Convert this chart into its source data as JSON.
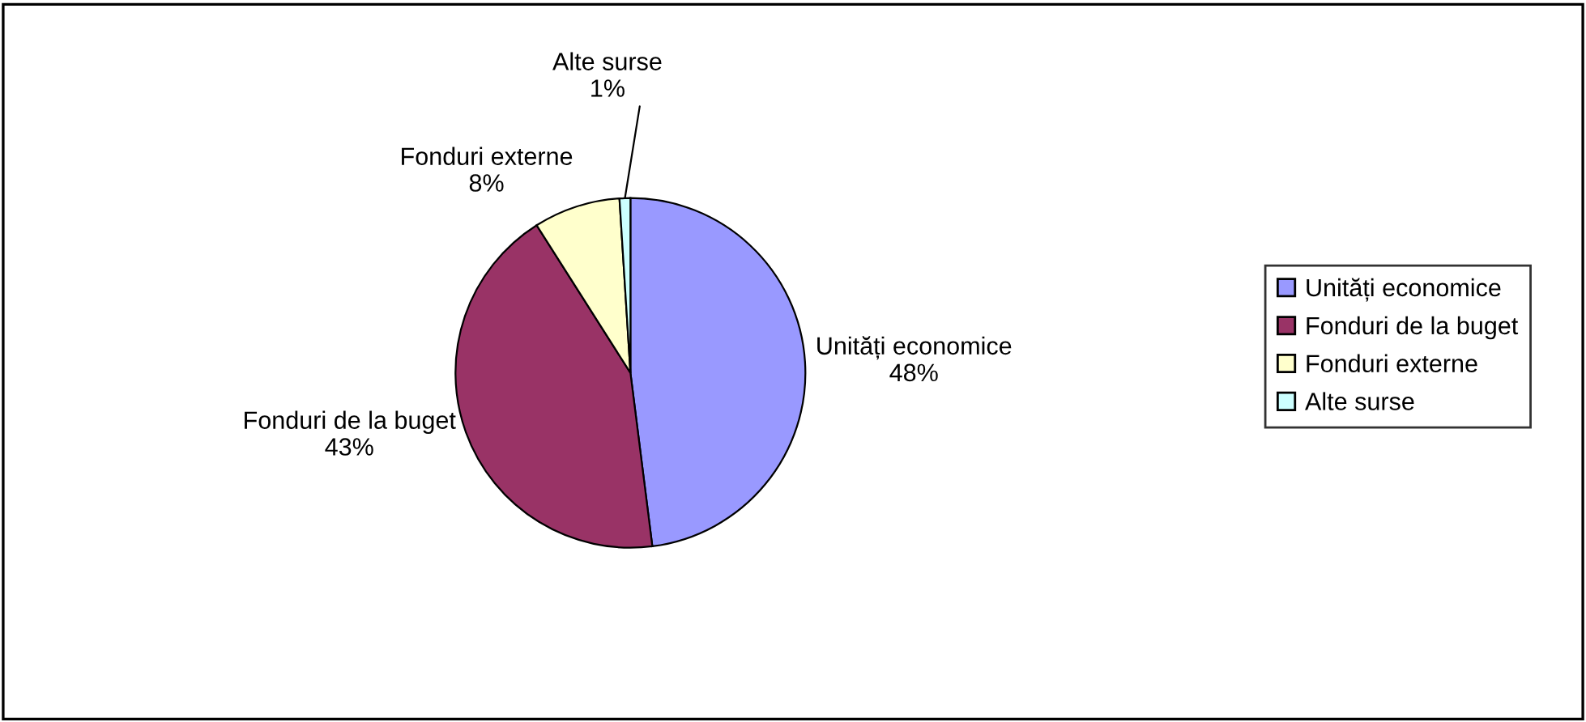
{
  "chart_data": {
    "type": "pie",
    "categories": [
      "Unități economice",
      "Fonduri de la buget",
      "Fonduri externe",
      "Alte surse"
    ],
    "values": [
      48,
      43,
      8,
      1
    ],
    "colors": [
      "#9999ff",
      "#993366",
      "#ffffcc",
      "#ccffff"
    ],
    "value_labels": [
      "48%",
      "43%",
      "8%",
      "1%"
    ],
    "legend": "right"
  }
}
